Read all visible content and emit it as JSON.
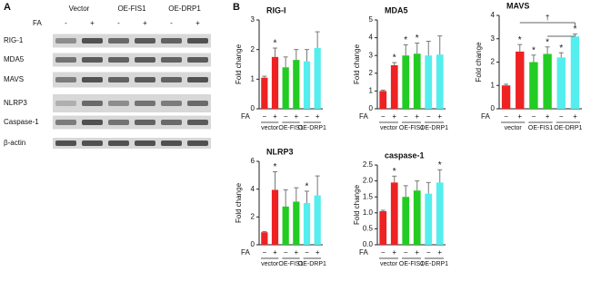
{
  "panel_a": {
    "label": "A",
    "groups": [
      "Vector",
      "OE-FIS1",
      "OE-DRP1"
    ],
    "fa_label": "FA",
    "signs": [
      "-",
      "+",
      "-",
      "+",
      "-",
      "+"
    ],
    "rows": [
      "RIG-1",
      "MDA5",
      "MAVS",
      "NLRP3",
      "Caspase-1",
      "β-actin"
    ]
  },
  "panel_b_label": "B",
  "chart_data": [
    {
      "type": "bar",
      "title": "RIG-I",
      "ylabel": "Fold change",
      "fa_label": "FA",
      "categories": [
        "−",
        "+",
        "−",
        "+",
        "−",
        "+"
      ],
      "groups": [
        "vector",
        "OE-FIS1",
        "OE-DRP1"
      ],
      "values": [
        1.05,
        1.75,
        1.4,
        1.65,
        1.6,
        2.05
      ],
      "errors": [
        0.05,
        0.3,
        0.35,
        0.35,
        0.4,
        0.55
      ],
      "colors": [
        "#ee2222",
        "#ee2222",
        "#22cc22",
        "#22cc22",
        "#55eeee",
        "#55eeee"
      ],
      "ylim": [
        0,
        3
      ],
      "yticks": [
        0,
        1,
        2,
        3
      ],
      "stars": [
        {
          "index": 1,
          "label": "*"
        }
      ]
    },
    {
      "type": "bar",
      "title": "MDA5",
      "ylabel": "Fold change",
      "fa_label": "FA",
      "categories": [
        "−",
        "+",
        "−",
        "+",
        "−",
        "+"
      ],
      "groups": [
        "vector",
        "OE-FIS1",
        "OE-DRP1"
      ],
      "values": [
        1.0,
        2.45,
        3.0,
        3.1,
        3.0,
        3.05
      ],
      "errors": [
        0.05,
        0.15,
        0.6,
        0.6,
        0.8,
        1.05
      ],
      "colors": [
        "#ee2222",
        "#ee2222",
        "#22cc22",
        "#22cc22",
        "#55eeee",
        "#55eeee"
      ],
      "ylim": [
        0,
        5
      ],
      "yticks": [
        0,
        1,
        2,
        3,
        4,
        5
      ],
      "stars": [
        {
          "index": 1,
          "label": "*"
        },
        {
          "index": 2,
          "label": "*"
        },
        {
          "index": 3,
          "label": "*"
        }
      ]
    },
    {
      "type": "bar",
      "title": "MAVS",
      "ylabel": "Fold change",
      "fa_label": "FA",
      "categories": [
        "−",
        "+",
        "−",
        "+",
        "−",
        "+"
      ],
      "groups": [
        "vector",
        "OE-FIS1",
        "OE-DRP1"
      ],
      "values": [
        1.0,
        2.45,
        2.0,
        2.35,
        2.2,
        3.1
      ],
      "errors": [
        0.05,
        0.3,
        0.3,
        0.3,
        0.2,
        0.1
      ],
      "colors": [
        "#ee2222",
        "#ee2222",
        "#22cc22",
        "#22cc22",
        "#55eeee",
        "#55eeee"
      ],
      "ylim": [
        0,
        4
      ],
      "yticks": [
        0,
        1,
        2,
        3,
        4
      ],
      "stars": [
        {
          "index": 1,
          "label": "*"
        },
        {
          "index": 2,
          "label": "*"
        },
        {
          "index": 3,
          "label": "*"
        },
        {
          "index": 4,
          "label": "*"
        },
        {
          "index": 5,
          "label": "*"
        }
      ],
      "bracket_label": "†"
    },
    {
      "type": "bar",
      "title": "NLRP3",
      "ylabel": "Fold change",
      "fa_label": "FA",
      "categories": [
        "−",
        "+",
        "−",
        "+",
        "−",
        "+"
      ],
      "groups": [
        "vector",
        "OE-FIS1",
        "OE-DRP1"
      ],
      "values": [
        0.9,
        3.95,
        2.75,
        3.1,
        3.0,
        3.55
      ],
      "errors": [
        0.05,
        1.3,
        1.2,
        1.0,
        0.85,
        1.4
      ],
      "colors": [
        "#ee2222",
        "#ee2222",
        "#22cc22",
        "#22cc22",
        "#55eeee",
        "#55eeee"
      ],
      "ylim": [
        0,
        6
      ],
      "yticks": [
        0,
        2,
        4,
        6
      ],
      "stars": [
        {
          "index": 1,
          "label": "*"
        },
        {
          "index": 4,
          "label": "*"
        }
      ]
    },
    {
      "type": "bar",
      "title": "caspase-1",
      "ylabel": "Fold change",
      "fa_label": "FA",
      "categories": [
        "−",
        "+",
        "−",
        "+",
        "−",
        "+"
      ],
      "groups": [
        "vector",
        "OE-FIS1",
        "OE-DRP1"
      ],
      "values": [
        1.05,
        1.95,
        1.5,
        1.7,
        1.6,
        1.95
      ],
      "errors": [
        0.03,
        0.2,
        0.35,
        0.3,
        0.35,
        0.4
      ],
      "colors": [
        "#ee2222",
        "#ee2222",
        "#22cc22",
        "#22cc22",
        "#55eeee",
        "#55eeee"
      ],
      "ylim": [
        0,
        2.5
      ],
      "yticks": [
        {
          "value": 0,
          "label": "0.0"
        },
        0.5,
        {
          "value": 1,
          "label": "1.0"
        },
        1.5,
        {
          "value": 2,
          "label": "2.0"
        },
        2.5
      ],
      "stars": [
        {
          "index": 1,
          "label": "*"
        },
        {
          "index": 5,
          "label": "*"
        }
      ]
    }
  ]
}
